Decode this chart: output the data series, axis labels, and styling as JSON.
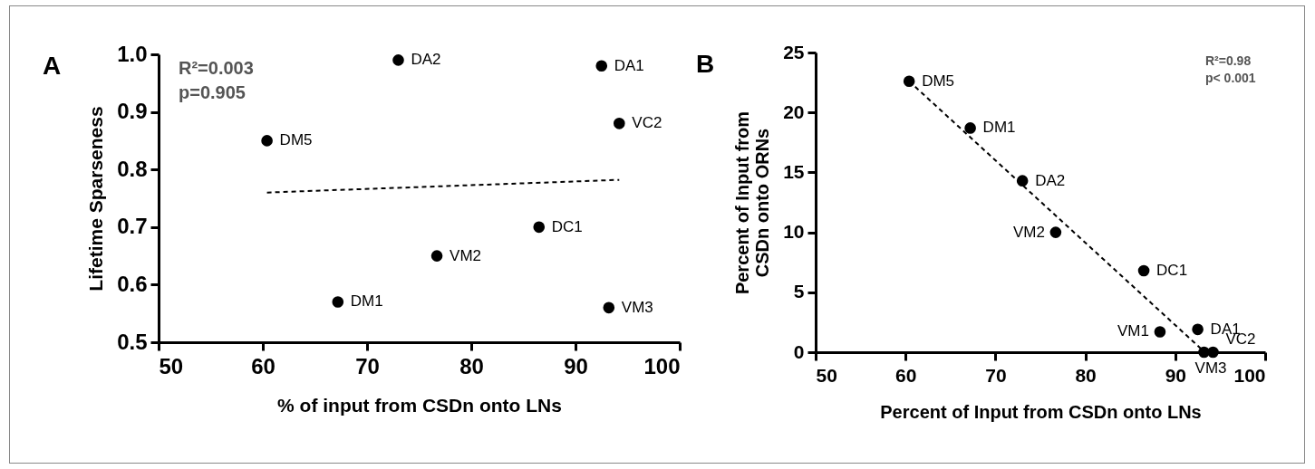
{
  "chart_data": [
    {
      "type": "scatter",
      "xlabel": "% of input from CSDn onto LNs",
      "ylabel": "Lifetime Sparseness",
      "marker": "circle",
      "xlim": [
        50,
        100
      ],
      "xticks": [
        50,
        60,
        70,
        80,
        90,
        100
      ],
      "ylim": [
        0.5,
        1.0
      ],
      "yticks": [
        0.5,
        0.6,
        0.7,
        0.8,
        0.9,
        {
          "value": 1,
          "label": "1.0"
        }
      ],
      "series": [
        {
          "color": "#000000",
          "x": [
            60.4,
            73.0,
            92.5,
            94.2,
            86.5,
            76.7,
            67.2,
            93.2
          ],
          "values": [
            0.85,
            0.99,
            0.98,
            0.88,
            0.7,
            0.65,
            0.57,
            0.56
          ]
        },
        {
          "type": "line",
          "color": "#000000",
          "line_style": "dashed",
          "marker": "none",
          "x": [
            60.4,
            94.2
          ],
          "values": [
            0.76,
            0.782
          ]
        }
      ],
      "annotations": [
        "A",
        "R²=0.003",
        "p=0.905",
        {
          "text": "DM5",
          "x": 60.4,
          "y": 0.85
        },
        {
          "text": "DA2",
          "x": 73.0,
          "y": 0.99
        },
        {
          "text": "DA1",
          "x": 92.5,
          "y": 0.98
        },
        {
          "text": "VC2",
          "x": 94.2,
          "y": 0.88
        },
        {
          "text": "DC1",
          "x": 86.5,
          "y": 0.7
        },
        {
          "text": "VM2",
          "x": 76.7,
          "y": 0.65
        },
        {
          "text": "DM1",
          "x": 67.2,
          "y": 0.57
        },
        {
          "text": "VM3",
          "x": 93.2,
          "y": 0.56
        }
      ]
    },
    {
      "type": "scatter",
      "xlabel": "Percent of Input from CSDn onto LNs",
      "ylabel": "Percent of Input from\nCSDn onto ORNs",
      "marker": "circle",
      "xlim": [
        50,
        100
      ],
      "xticks": [
        50,
        60,
        70,
        80,
        90,
        100
      ],
      "ylim": [
        0,
        25
      ],
      "yticks": [
        0,
        5,
        10,
        15,
        20,
        25
      ],
      "series": [
        {
          "color": "#000000",
          "x": [
            60.4,
            67.2,
            73.0,
            76.7,
            86.5,
            88.3,
            92.5,
            93.2,
            94.2
          ],
          "values": [
            22.6,
            18.7,
            14.3,
            10.0,
            6.8,
            1.7,
            1.9,
            0,
            0
          ]
        },
        {
          "type": "line",
          "color": "#000000",
          "line_style": "dashed",
          "marker": "none",
          "x": [
            60.4,
            93.0
          ],
          "values": [
            22.6,
            0.2
          ]
        }
      ],
      "annotations": [
        "B",
        "R²=0.98",
        "p< 0.001",
        {
          "text": "DM5",
          "x": 60.4,
          "y": 22.6
        },
        {
          "text": "DM1",
          "x": 67.2,
          "y": 18.7
        },
        {
          "text": "DA2",
          "x": 73.0,
          "y": 14.3
        },
        {
          "text": "VM2",
          "x": 76.7,
          "y": 10.0
        },
        {
          "text": "DC1",
          "x": 86.5,
          "y": 6.8
        },
        {
          "text": "VM1",
          "x": 88.3,
          "y": 1.7
        },
        {
          "text": "DA1",
          "x": 92.5,
          "y": 1.9
        },
        {
          "text": "VM3",
          "x": 93.2,
          "y": 0
        },
        {
          "text": "VC2",
          "x": 94.2,
          "y": 0
        }
      ]
    }
  ]
}
